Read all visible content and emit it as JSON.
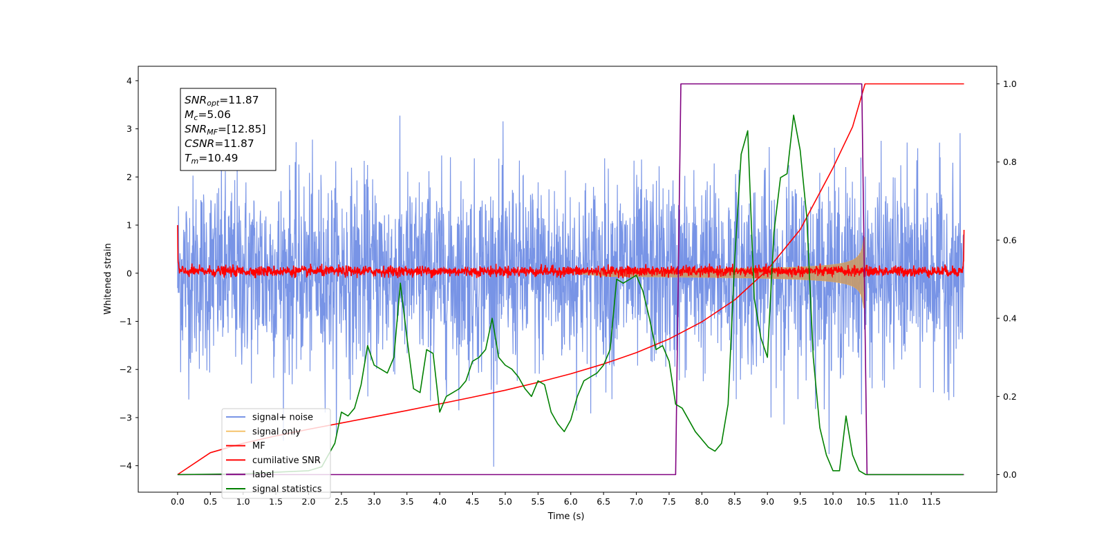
{
  "chart_data": {
    "type": "line",
    "title": "",
    "xlabel": "Time (s)",
    "ylabel": "Whitened strain",
    "xlim": [
      -0.6,
      12.5
    ],
    "ylim": [
      -4.55,
      4.3
    ],
    "y2lim": [
      -0.045,
      1.045
    ],
    "x_ticks": [
      0.0,
      0.5,
      1.0,
      1.5,
      2.0,
      2.5,
      3.0,
      3.5,
      4.0,
      4.5,
      5.0,
      5.5,
      6.0,
      6.5,
      7.0,
      7.5,
      8.0,
      8.5,
      9.0,
      9.5,
      10.0,
      10.5,
      11.0,
      11.5
    ],
    "x_tick_labels": [
      "0.0",
      "0.5",
      "1.0",
      "1.5",
      "2.0",
      "2.5",
      "3.0",
      "3.5",
      "4.0",
      "4.5",
      "5.0",
      "5.5",
      "6.0",
      "6.5",
      "7.0",
      "7.5",
      "8.0",
      "8.5",
      "9.0",
      "9.5",
      "10.0",
      "10.5",
      "11.0",
      "11.5"
    ],
    "y_ticks": [
      -4,
      -3,
      -2,
      -1,
      0,
      1,
      2,
      3,
      4
    ],
    "y_tick_labels": [
      "−4",
      "−3",
      "−2",
      "−1",
      "0",
      "1",
      "2",
      "3",
      "4"
    ],
    "y2_ticks": [
      0.0,
      0.2,
      0.4,
      0.6,
      0.8,
      1.0
    ],
    "y2_tick_labels": [
      "0.0",
      "0.2",
      "0.4",
      "0.6",
      "0.8",
      "1.0"
    ],
    "grid": false,
    "legend_position": "lower-left",
    "colors": {
      "signal_noise": "#7894e6",
      "signal_only": "#f5c26b",
      "mf": "#ff0000",
      "cumulative_snr": "#ff0000",
      "label": "#800080",
      "signal_statistics": "#008000"
    },
    "series": [
      {
        "name": "signal+ noise",
        "axis": "left",
        "style": "noise",
        "x_range": [
          0.0,
          12.0
        ],
        "amplitude_range": [
          -4.15,
          3.9
        ]
      },
      {
        "name": "signal only",
        "axis": "left",
        "style": "chirp",
        "x_range": [
          6.0,
          10.49
        ],
        "peak_amplitude": 0.95
      },
      {
        "name": "MF",
        "axis": "left",
        "style": "noise",
        "x_range": [
          0.0,
          12.0
        ],
        "amplitude_range": [
          -0.1,
          0.2
        ],
        "edge_values": [
          1.0,
          0.9
        ]
      },
      {
        "name": "cumilative SNR",
        "axis": "right",
        "x": [
          0.0,
          0.5,
          1.0,
          1.5,
          2.0,
          2.5,
          3.0,
          3.5,
          4.0,
          4.5,
          5.0,
          5.5,
          6.0,
          6.5,
          7.0,
          7.5,
          8.0,
          8.5,
          9.0,
          9.5,
          10.0,
          10.3,
          10.49,
          12.0
        ],
        "values": [
          0.0,
          0.056,
          0.08,
          0.099,
          0.116,
          0.132,
          0.148,
          0.164,
          0.181,
          0.198,
          0.216,
          0.236,
          0.258,
          0.283,
          0.312,
          0.347,
          0.391,
          0.447,
          0.524,
          0.627,
          0.785,
          0.89,
          1.0,
          1.0
        ]
      },
      {
        "name": "label",
        "axis": "right",
        "x": [
          0.0,
          7.6,
          7.68,
          10.44,
          10.52,
          12.0
        ],
        "values": [
          0.0,
          0.0,
          1.0,
          1.0,
          0.0,
          0.0
        ]
      },
      {
        "name": "signal statistics",
        "axis": "right",
        "x": [
          0.0,
          0.5,
          1.0,
          1.5,
          2.0,
          2.2,
          2.4,
          2.5,
          2.6,
          2.7,
          2.8,
          2.9,
          3.0,
          3.1,
          3.2,
          3.3,
          3.4,
          3.5,
          3.6,
          3.7,
          3.8,
          3.9,
          4.0,
          4.1,
          4.2,
          4.3,
          4.4,
          4.5,
          4.6,
          4.7,
          4.8,
          4.9,
          5.0,
          5.1,
          5.2,
          5.3,
          5.4,
          5.5,
          5.6,
          5.7,
          5.8,
          5.9,
          6.0,
          6.1,
          6.2,
          6.3,
          6.4,
          6.5,
          6.6,
          6.7,
          6.8,
          6.9,
          7.0,
          7.1,
          7.2,
          7.3,
          7.4,
          7.5,
          7.6,
          7.7,
          7.8,
          7.9,
          8.0,
          8.1,
          8.2,
          8.3,
          8.4,
          8.5,
          8.6,
          8.7,
          8.8,
          8.9,
          9.0,
          9.1,
          9.2,
          9.3,
          9.4,
          9.5,
          9.6,
          9.7,
          9.8,
          9.9,
          10.0,
          10.1,
          10.2,
          10.3,
          10.4,
          10.5,
          11.0,
          11.5,
          11.99
        ],
        "values": [
          0.0,
          0.001,
          0.002,
          0.006,
          0.01,
          0.02,
          0.08,
          0.16,
          0.15,
          0.17,
          0.23,
          0.33,
          0.28,
          0.27,
          0.26,
          0.3,
          0.49,
          0.35,
          0.22,
          0.21,
          0.32,
          0.31,
          0.16,
          0.2,
          0.21,
          0.22,
          0.24,
          0.29,
          0.3,
          0.32,
          0.4,
          0.3,
          0.28,
          0.27,
          0.25,
          0.22,
          0.2,
          0.24,
          0.23,
          0.16,
          0.13,
          0.11,
          0.14,
          0.2,
          0.24,
          0.25,
          0.26,
          0.28,
          0.32,
          0.5,
          0.49,
          0.5,
          0.51,
          0.47,
          0.4,
          0.32,
          0.33,
          0.29,
          0.18,
          0.17,
          0.14,
          0.11,
          0.09,
          0.07,
          0.06,
          0.08,
          0.18,
          0.55,
          0.82,
          0.88,
          0.45,
          0.35,
          0.3,
          0.62,
          0.76,
          0.77,
          0.92,
          0.83,
          0.66,
          0.3,
          0.12,
          0.05,
          0.01,
          0.01,
          0.15,
          0.05,
          0.01,
          0.0,
          0.0,
          0.0,
          0.0
        ]
      }
    ],
    "annotation_box": [
      {
        "var": "SNR",
        "sub": "opt",
        "value": "=11.87"
      },
      {
        "var": "M",
        "sub": "c",
        "value": "=5.06"
      },
      {
        "var": "SNR",
        "sub": "MF",
        "value": "=[12.85]"
      },
      {
        "var": "CSNR",
        "sub": "",
        "value": "=11.87"
      },
      {
        "var": "T",
        "sub": "m",
        "value": "=10.49"
      }
    ],
    "legend": [
      "signal+ noise",
      "signal only",
      "MF",
      "cumilative SNR",
      "label",
      "signal statistics"
    ]
  }
}
